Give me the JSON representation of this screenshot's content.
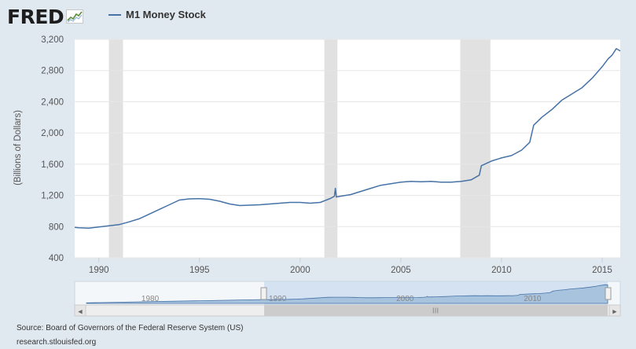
{
  "logo": {
    "text": "FRED",
    "icon": "trend-line-icon"
  },
  "legend": {
    "label": "M1 Money Stock"
  },
  "colors": {
    "series": "#4572a7",
    "recession": "#e1e1e1",
    "background": "#e1e9f0",
    "plot": "#ffffff",
    "navigator_fill": "#a8c3dd",
    "navigator_mask": "#c6d9ec"
  },
  "footer": {
    "source": "Source: Board of Governors of the Federal Reserve System (US)",
    "url": "research.stlouisfed.org"
  },
  "chart_data": {
    "type": "line",
    "title": "",
    "xlabel": "",
    "ylabel": "(Billions of Dollars)",
    "xlim": [
      1988.8,
      2015.9
    ],
    "ylim": [
      400,
      3200
    ],
    "yticks": [
      400,
      800,
      1200,
      1600,
      2000,
      2400,
      2800,
      3200
    ],
    "ytick_labels": [
      "400",
      "800",
      "1,200",
      "1,600",
      "2,000",
      "2,400",
      "2,800",
      "3,200"
    ],
    "xticks": [
      1990,
      1995,
      2000,
      2005,
      2010,
      2015
    ],
    "xtick_labels": [
      "1990",
      "1995",
      "2000",
      "2005",
      "2010",
      "2015"
    ],
    "grid": true,
    "legend_position": "top",
    "recessions": [
      [
        1990.5,
        1991.2
      ],
      [
        2001.2,
        2001.85
      ],
      [
        2007.95,
        2009.45
      ]
    ],
    "series": [
      {
        "name": "M1 Money Stock",
        "x": [
          1988.8,
          1989.0,
          1989.5,
          1990.0,
          1990.5,
          1991.0,
          1991.5,
          1992.0,
          1992.5,
          1993.0,
          1993.5,
          1994.0,
          1994.5,
          1995.0,
          1995.5,
          1996.0,
          1996.5,
          1997.0,
          1997.5,
          1998.0,
          1998.5,
          1999.0,
          1999.5,
          2000.0,
          2000.5,
          2001.0,
          2001.5,
          2001.7,
          2001.75,
          2001.8,
          2002.0,
          2002.5,
          2003.0,
          2003.5,
          2004.0,
          2004.5,
          2005.0,
          2005.5,
          2006.0,
          2006.5,
          2007.0,
          2007.5,
          2008.0,
          2008.5,
          2008.9,
          2009.0,
          2009.5,
          2010.0,
          2010.5,
          2011.0,
          2011.4,
          2011.6,
          2011.8,
          2012.0,
          2012.5,
          2013.0,
          2013.5,
          2014.0,
          2014.5,
          2015.0,
          2015.3,
          2015.5,
          2015.7,
          2015.9
        ],
        "y": [
          790,
          785,
          780,
          795,
          810,
          825,
          860,
          900,
          960,
          1020,
          1080,
          1140,
          1155,
          1158,
          1150,
          1125,
          1090,
          1070,
          1075,
          1080,
          1090,
          1100,
          1110,
          1110,
          1100,
          1110,
          1160,
          1190,
          1290,
          1180,
          1190,
          1210,
          1250,
          1290,
          1330,
          1350,
          1370,
          1380,
          1375,
          1380,
          1370,
          1370,
          1380,
          1400,
          1460,
          1580,
          1640,
          1680,
          1710,
          1780,
          1880,
          2100,
          2150,
          2200,
          2300,
          2420,
          2500,
          2580,
          2700,
          2850,
          2950,
          3000,
          3080,
          3050
        ]
      }
    ]
  },
  "navigator": {
    "labels": [
      "1980",
      "1990",
      "2000",
      "2010"
    ],
    "scrollbar_grip": "III",
    "left_arrow": "◀",
    "right_arrow": "▶"
  }
}
